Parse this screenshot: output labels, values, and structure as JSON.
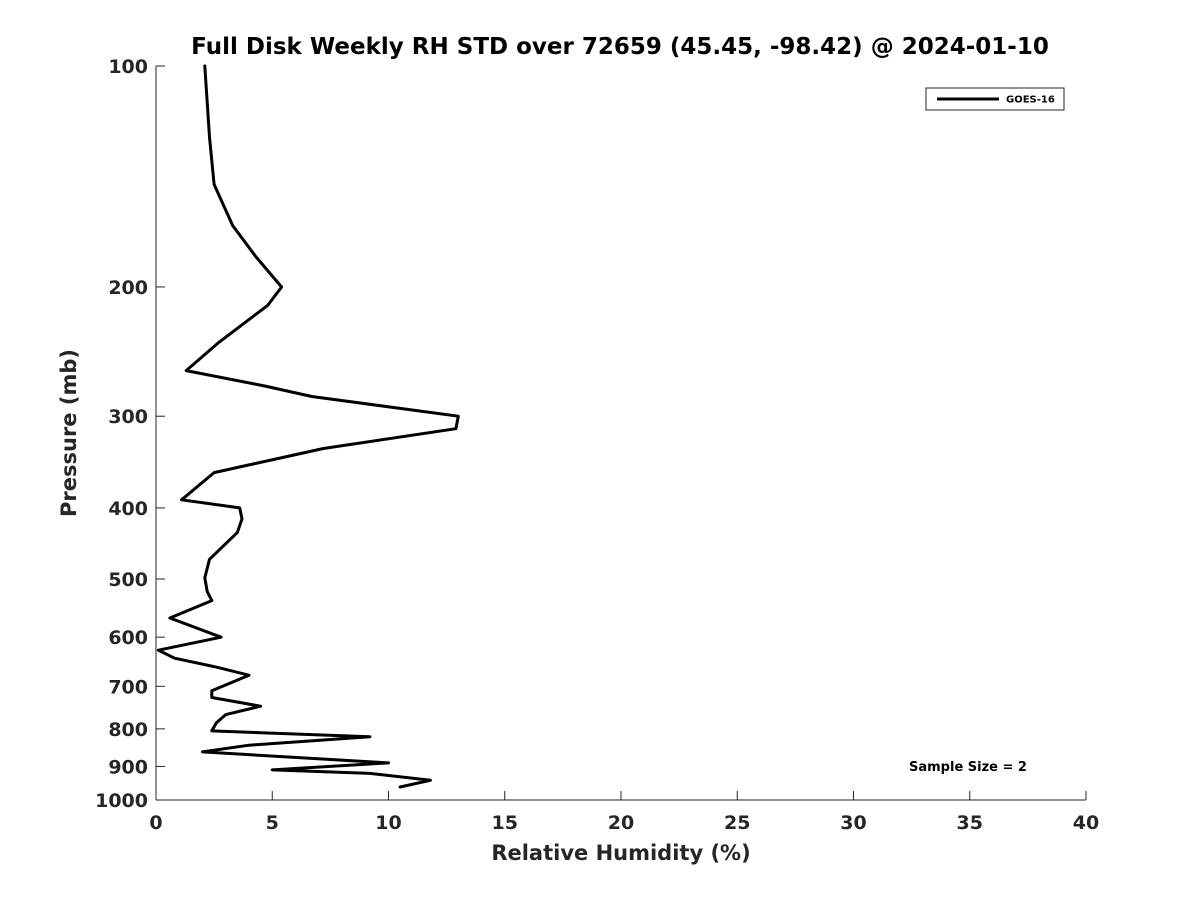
{
  "chart_data": {
    "type": "line",
    "title": "Full Disk Weekly RH STD over 72659 (45.45, -98.42) @ 2024-01-10",
    "xlabel": "Relative Humidity (%)",
    "ylabel": "Pressure (mb)",
    "xlim": [
      0,
      40
    ],
    "ylim": [
      100,
      1000
    ],
    "yscale": "log",
    "y_reversed": true,
    "grid": false,
    "xticks": [
      0,
      5,
      10,
      15,
      20,
      25,
      30,
      35,
      40
    ],
    "xtick_labels": [
      "0",
      "5",
      "10",
      "15",
      "20",
      "25",
      "30",
      "35",
      "40"
    ],
    "yticks": [
      100,
      200,
      300,
      400,
      500,
      600,
      700,
      800,
      900,
      1000
    ],
    "ytick_labels": [
      "100",
      "200",
      "300",
      "400",
      "500",
      "600",
      "700",
      "800",
      "900",
      "1000"
    ],
    "legend": {
      "location": "top-right",
      "entries": [
        "GOES-16"
      ]
    },
    "annotation": "Sample Size = 2",
    "line_color": "#000000",
    "series": [
      {
        "name": "GOES-16",
        "x": [
          2.1,
          2.3,
          2.5,
          3.3,
          4.3,
          5.4,
          4.8,
          2.7,
          1.3,
          4.7,
          6.7,
          13.0,
          12.9,
          7.2,
          2.5,
          1.1,
          3.6,
          3.7,
          3.5,
          2.3,
          2.1,
          2.2,
          2.4,
          0.6,
          2.8,
          0.1,
          0.8,
          2.5,
          4.0,
          2.4,
          2.4,
          4.5,
          3.0,
          2.6,
          2.4,
          9.2,
          4.0,
          2.0,
          10.0,
          5.0,
          9.2,
          11.8,
          10.5
        ],
        "y": [
          100,
          125,
          145,
          165,
          182,
          200,
          212,
          238,
          260,
          273,
          282,
          300,
          312,
          332,
          358,
          390,
          400,
          414,
          432,
          470,
          498,
          520,
          535,
          565,
          600,
          625,
          641,
          658,
          676,
          710,
          725,
          745,
          765,
          785,
          805,
          820,
          842,
          860,
          890,
          910,
          920,
          940,
          960
        ]
      }
    ]
  }
}
